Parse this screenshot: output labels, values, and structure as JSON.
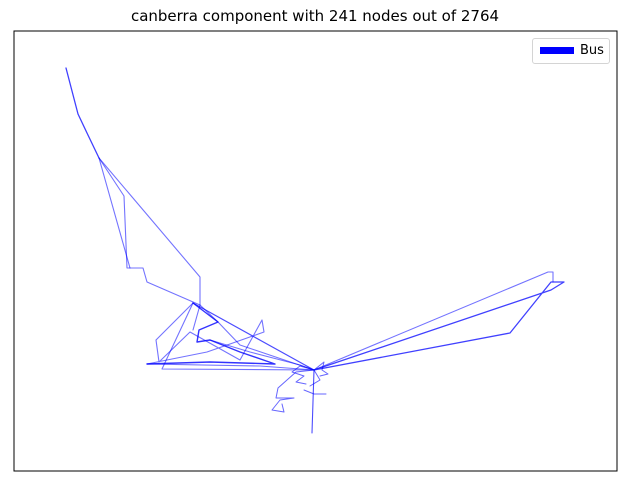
{
  "figure": {
    "title": "canberra component with 241 nodes out of 2764",
    "legend": [
      {
        "label": "Bus",
        "color": "#0000ff"
      }
    ],
    "edge_color": "#0000ff",
    "background": "#ffffff",
    "axes_ticks": "none"
  }
}
